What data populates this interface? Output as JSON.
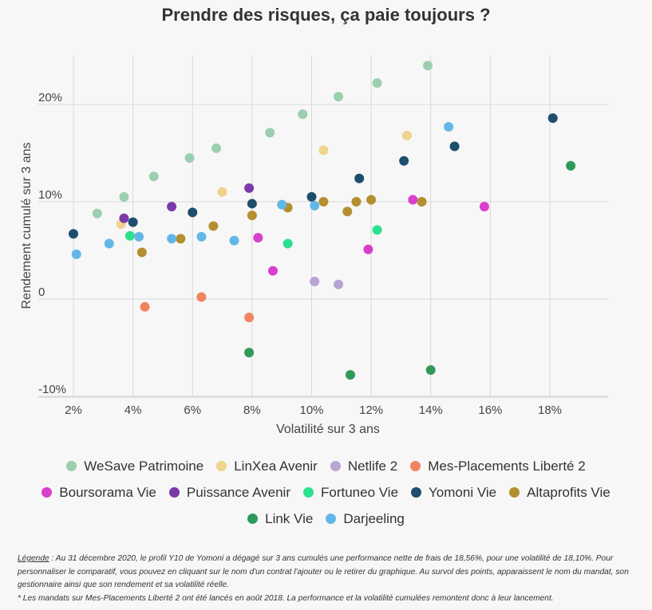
{
  "chart_data": {
    "type": "scatter",
    "title": "Prendre des risques, ça paie toujours ?",
    "xlabel": "Volatilité sur 3 ans",
    "ylabel": "Rendement cumulé sur 3 ans",
    "xlim": [
      1.5,
      20
    ],
    "ylim": [
      -10,
      24.5
    ],
    "x_ticks": [
      2,
      4,
      6,
      8,
      10,
      12,
      14,
      16,
      18
    ],
    "x_tick_labels": [
      "2%",
      "4%",
      "6%",
      "8%",
      "10%",
      "12%",
      "14%",
      "16%",
      "18%"
    ],
    "y_ticks": [
      -10,
      0,
      10,
      20
    ],
    "y_tick_labels": [
      "-10%",
      "0",
      "10%",
      "20%"
    ],
    "grid": true,
    "legend_position": "bottom",
    "series": [
      {
        "name": "WeSave Patrimoine",
        "color": "#9ccfae",
        "points": [
          [
            2.8,
            8.8
          ],
          [
            3.7,
            10.5
          ],
          [
            4.7,
            12.6
          ],
          [
            5.9,
            14.5
          ],
          [
            6.8,
            15.5
          ],
          [
            8.6,
            17.1
          ],
          [
            9.7,
            19.0
          ],
          [
            10.9,
            20.8
          ],
          [
            12.2,
            22.2
          ],
          [
            13.9,
            24.0
          ]
        ]
      },
      {
        "name": "LinXea Avenir",
        "color": "#f0d38c",
        "points": [
          [
            3.6,
            7.7
          ],
          [
            7.0,
            11.0
          ],
          [
            10.4,
            15.3
          ],
          [
            13.2,
            16.8
          ]
        ]
      },
      {
        "name": "Netlife 2",
        "color": "#b9a4d2",
        "points": [
          [
            10.1,
            1.8
          ],
          [
            10.9,
            1.5
          ]
        ]
      },
      {
        "name": "Mes-Placements Liberté 2",
        "color": "#f0845e",
        "points": [
          [
            4.4,
            -0.8
          ],
          [
            6.3,
            0.2
          ],
          [
            7.9,
            -1.9
          ]
        ]
      },
      {
        "name": "Boursorama Vie",
        "color": "#d93ecf",
        "points": [
          [
            8.2,
            6.3
          ],
          [
            8.7,
            2.9
          ],
          [
            11.9,
            5.1
          ],
          [
            13.4,
            10.2
          ],
          [
            15.8,
            9.5
          ]
        ]
      },
      {
        "name": "Puissance Avenir",
        "color": "#7b3aaa",
        "points": [
          [
            3.7,
            8.3
          ],
          [
            5.3,
            9.5
          ],
          [
            7.9,
            11.4
          ]
        ]
      },
      {
        "name": "Fortuneo Vie",
        "color": "#2de08f",
        "points": [
          [
            3.9,
            6.5
          ],
          [
            9.2,
            5.7
          ],
          [
            12.2,
            7.1
          ]
        ]
      },
      {
        "name": "Yomoni Vie",
        "color": "#1f4e6d",
        "points": [
          [
            2.0,
            6.7
          ],
          [
            4.0,
            7.9
          ],
          [
            6.0,
            8.9
          ],
          [
            8.0,
            9.8
          ],
          [
            10.0,
            10.5
          ],
          [
            11.6,
            12.4
          ],
          [
            13.1,
            14.2
          ],
          [
            14.8,
            15.7
          ],
          [
            18.1,
            18.6
          ]
        ]
      },
      {
        "name": "Altaprofits Vie",
        "color": "#b48f2f",
        "points": [
          [
            4.3,
            4.8
          ],
          [
            5.6,
            6.2
          ],
          [
            6.7,
            7.5
          ],
          [
            8.0,
            8.6
          ],
          [
            9.2,
            9.4
          ],
          [
            10.4,
            10.0
          ],
          [
            11.2,
            9.0
          ],
          [
            11.5,
            10.0
          ],
          [
            12.0,
            10.2
          ],
          [
            13.7,
            10.0
          ]
        ]
      },
      {
        "name": "Link Vie",
        "color": "#2f9a5a",
        "points": [
          [
            7.9,
            -5.5
          ],
          [
            11.3,
            -7.8
          ],
          [
            14.0,
            -7.3
          ],
          [
            18.7,
            13.7
          ]
        ]
      },
      {
        "name": "Darjeeling",
        "color": "#63b7e6",
        "points": [
          [
            2.1,
            4.6
          ],
          [
            3.2,
            5.7
          ],
          [
            4.2,
            6.4
          ],
          [
            5.3,
            6.2
          ],
          [
            6.3,
            6.4
          ],
          [
            7.4,
            6.0
          ],
          [
            9.0,
            9.7
          ],
          [
            10.1,
            9.6
          ],
          [
            14.6,
            17.7
          ]
        ]
      }
    ]
  },
  "footnote": {
    "legend_label": "Légende",
    "line1": " : Au 31 décembre 2020, le profil Y10 de Yomoni a dégagé sur 3 ans cumulés une performance nette de frais de 18,56%, pour une volatilité de 18,10%. Pour personnaliser le comparatif, vous pouvez en cliquant sur le nom d'un contrat l'ajouter ou le retirer du graphique. Au survol des points, apparaissent le nom du mandat, son gestionnaire ainsi que son rendement et sa volatilité réelle.",
    "line2": "* Les mandats sur Mes-Placements Liberté 2 ont été lancés en août 2018. La performance et la volatilité cumulées remontent donc à leur lancement."
  }
}
